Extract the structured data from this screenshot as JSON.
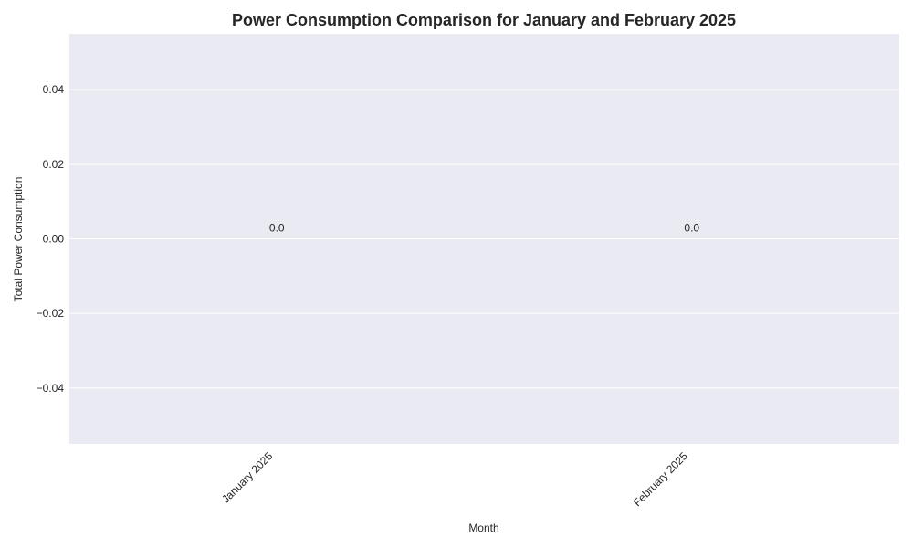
{
  "chart_data": {
    "type": "bar",
    "title": "Power Consumption Comparison for January and February 2025",
    "xlabel": "Month",
    "ylabel": "Total Power Consumption",
    "categories": [
      "January 2025",
      "February 2025"
    ],
    "values": [
      0.0,
      0.0
    ],
    "data_labels": [
      "0.0",
      "0.0"
    ],
    "ylim": [
      -0.055,
      0.055
    ],
    "yticks": [
      -0.04,
      -0.02,
      0.0,
      0.02,
      0.04
    ],
    "ytick_labels": [
      "−0.04",
      "−0.02",
      "0.00",
      "0.02",
      "0.04"
    ],
    "grid": true,
    "colors": {
      "plot_background": "#eaeaf2",
      "grid": "#ffffff",
      "bar": "#4c72b0",
      "text": "#262626"
    }
  }
}
